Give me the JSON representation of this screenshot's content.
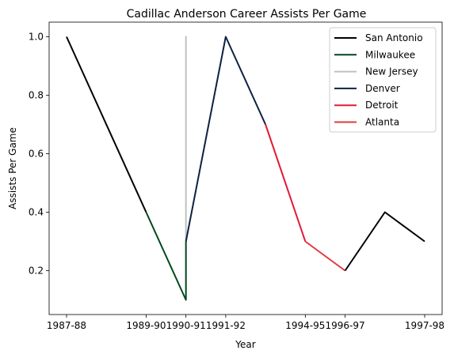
{
  "chart_data": {
    "type": "line",
    "title": "Cadillac Anderson Career Assists Per Game",
    "xlabel": "Year",
    "ylabel": "Assists Per Game",
    "x_ticks": [
      "1987-88",
      "1989-90",
      "1990-91",
      "1991-92",
      "1994-95",
      "1996-97",
      "1997-98"
    ],
    "y_ticks": [
      "0.2",
      "0.4",
      "0.6",
      "0.8",
      "1.0"
    ],
    "ylim": [
      0.05,
      1.05
    ],
    "legend_position": "top-right",
    "grid": false,
    "series": [
      {
        "name": "San Antonio",
        "color": "#000000",
        "points": [
          [
            0,
            1.0
          ],
          [
            2,
            0.4
          ]
        ]
      },
      {
        "name": "Milwaukee",
        "color": "#00471B",
        "points": [
          [
            2,
            0.4
          ],
          [
            3,
            0.1
          ],
          [
            3,
            0.3
          ]
        ]
      },
      {
        "name": "New Jersey",
        "color": "#BEC0C2",
        "points": [
          [
            3,
            0.3
          ],
          [
            3,
            1.0
          ],
          [
            3,
            0.3
          ]
        ]
      },
      {
        "name": "Denver",
        "color": "#0E2240",
        "points": [
          [
            3,
            0.3
          ],
          [
            4,
            1.0
          ],
          [
            5,
            0.7
          ]
        ]
      },
      {
        "name": "Detroit",
        "color": "#E31837",
        "points": [
          [
            5,
            0.7
          ],
          [
            6,
            0.3
          ]
        ]
      },
      {
        "name": "Atlanta",
        "color": "#E03A3E",
        "points": [
          [
            6,
            0.3
          ],
          [
            7,
            0.2
          ]
        ]
      },
      {
        "name": "San Antonio",
        "color": "#000000",
        "points": [
          [
            7,
            0.2
          ],
          [
            8,
            0.4
          ],
          [
            9,
            0.3
          ]
        ],
        "legend": false
      }
    ],
    "x_tick_index": [
      0,
      2,
      3,
      4,
      6,
      7,
      9
    ]
  }
}
